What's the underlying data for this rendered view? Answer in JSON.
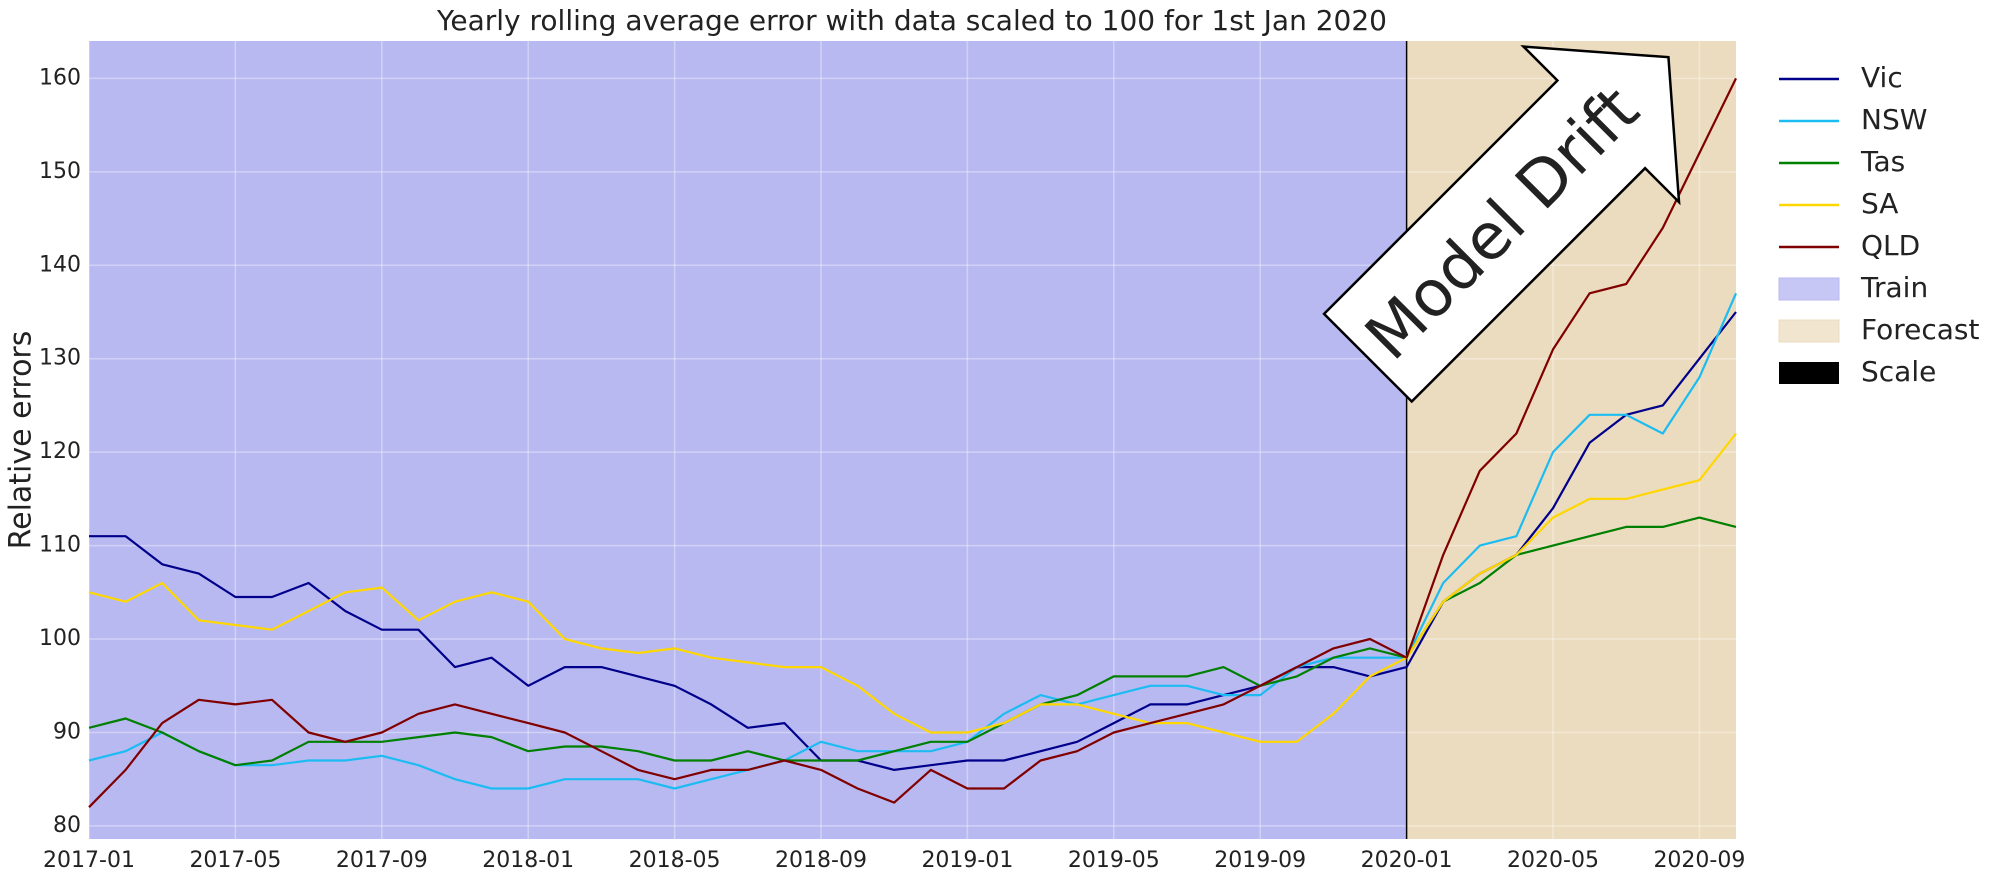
{
  "chart_data": {
    "type": "line",
    "title": "Yearly rolling average error with data scaled to 100 for 1st Jan 2020",
    "ylabel": "Relative errors",
    "x": [
      "2017-01",
      "2017-02",
      "2017-03",
      "2017-04",
      "2017-05",
      "2017-06",
      "2017-07",
      "2017-08",
      "2017-09",
      "2017-10",
      "2017-11",
      "2017-12",
      "2018-01",
      "2018-02",
      "2018-03",
      "2018-04",
      "2018-05",
      "2018-06",
      "2018-07",
      "2018-08",
      "2018-09",
      "2018-10",
      "2018-11",
      "2018-12",
      "2019-01",
      "2019-02",
      "2019-03",
      "2019-04",
      "2019-05",
      "2019-06",
      "2019-07",
      "2019-08",
      "2019-09",
      "2019-10",
      "2019-11",
      "2019-12",
      "2020-01",
      "2020-02",
      "2020-03",
      "2020-04",
      "2020-05",
      "2020-06",
      "2020-07",
      "2020-08",
      "2020-09",
      "2020-10"
    ],
    "series": [
      {
        "name": "Vic",
        "color": "#00008b",
        "values": [
          111,
          111,
          108,
          107,
          104.5,
          104.5,
          106,
          103,
          101,
          101,
          97,
          98,
          95,
          97,
          97,
          96,
          95,
          93,
          90.5,
          91,
          87,
          87,
          86,
          86.5,
          87,
          87,
          88,
          89,
          91,
          93,
          93,
          94,
          95,
          97,
          97,
          96,
          97,
          104,
          107,
          109,
          114,
          121,
          124,
          125,
          130,
          135
        ]
      },
      {
        "name": "NSW",
        "color": "#1cbcf2",
        "values": [
          87,
          88,
          90,
          88,
          86.5,
          86.5,
          87,
          87,
          87.5,
          86.5,
          85,
          84,
          84,
          85,
          85,
          85,
          84,
          85,
          86,
          87,
          89,
          88,
          88,
          88,
          89,
          92,
          94,
          93,
          94,
          95,
          95,
          94,
          94,
          97,
          98,
          98,
          98,
          106,
          110,
          111,
          120,
          124,
          124,
          122,
          128,
          137
        ]
      },
      {
        "name": "Tas",
        "color": "#008000",
        "values": [
          90.5,
          91.5,
          90,
          88,
          86.5,
          87,
          89,
          89,
          89,
          89.5,
          90,
          89.5,
          88,
          88.5,
          88.5,
          88,
          87,
          87,
          88,
          87,
          87,
          87,
          88,
          89,
          89,
          91,
          93,
          94,
          96,
          96,
          96,
          97,
          95,
          96,
          98,
          99,
          98,
          104,
          106,
          109,
          110,
          111,
          112,
          112,
          113,
          112
        ]
      },
      {
        "name": "SA",
        "color": "#ffd700",
        "values": [
          105,
          104,
          106,
          102,
          101.5,
          101,
          103,
          105,
          105.5,
          102,
          104,
          105,
          104,
          100,
          99,
          98.5,
          99,
          98,
          97.5,
          97,
          97,
          95,
          92,
          90,
          90,
          91,
          93,
          93,
          92,
          91,
          91,
          90,
          89,
          89,
          92,
          96,
          98,
          104,
          107,
          109,
          113,
          115,
          115,
          116,
          117,
          122
        ]
      },
      {
        "name": "QLD",
        "color": "#800000",
        "values": [
          82,
          86,
          91,
          93.5,
          93,
          93.5,
          90,
          89,
          90,
          92,
          93,
          92,
          91,
          90,
          88,
          86,
          85,
          86,
          86,
          87,
          86,
          84,
          82.5,
          86,
          84,
          84,
          87,
          88,
          90,
          91,
          92,
          93,
          95,
          97,
          99,
          100,
          98,
          109,
          118,
          122,
          131,
          137,
          138,
          144,
          152,
          160
        ]
      }
    ],
    "spans": [
      {
        "name": "Train",
        "start": "2017-01",
        "end": "2020-01",
        "color": "#b9b9f2"
      },
      {
        "name": "Forecast",
        "start": "2020-01",
        "end": "2020-10",
        "color": "#ecdcbf"
      }
    ],
    "vlines": [
      {
        "name": "Scale",
        "x": "2020-01",
        "color": "#000000"
      }
    ],
    "annotation": {
      "text": "Model Drift",
      "x": "2020-04",
      "y": 146
    },
    "xlim": [
      "2017-01",
      "2020-10"
    ],
    "xticks": [
      "2017-01",
      "2017-05",
      "2017-09",
      "2018-01",
      "2018-05",
      "2018-09",
      "2019-01",
      "2019-05",
      "2019-09",
      "2020-01",
      "2020-05",
      "2020-09"
    ],
    "ylim": [
      78.6,
      164
    ],
    "yticks": [
      80,
      90,
      100,
      110,
      120,
      130,
      140,
      150,
      160
    ],
    "grid": true,
    "legend": "outside-right"
  }
}
